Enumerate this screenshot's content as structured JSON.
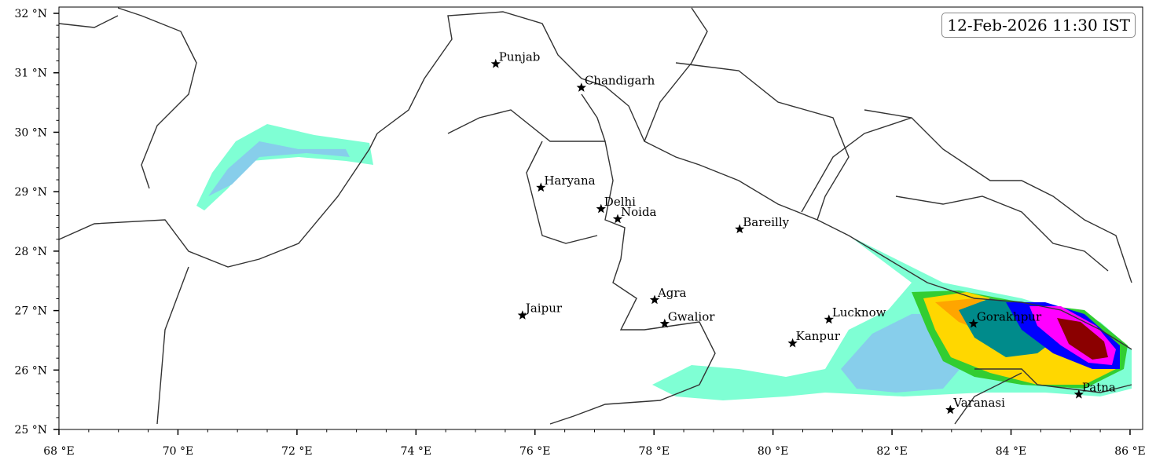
{
  "map": {
    "timestamp": "12-Feb-2026 11:30 IST",
    "extent": {
      "lon": [
        68,
        86.2
      ],
      "lat": [
        25,
        32.1
      ]
    },
    "x_ticks": [
      {
        "v": 68,
        "label": "68 °E"
      },
      {
        "v": 70,
        "label": "70 °E"
      },
      {
        "v": 72,
        "label": "72 °E"
      },
      {
        "v": 74,
        "label": "74 °E"
      },
      {
        "v": 76,
        "label": "76 °E"
      },
      {
        "v": 78,
        "label": "78 °E"
      },
      {
        "v": 80,
        "label": "80 °E"
      },
      {
        "v": 82,
        "label": "82 °E"
      },
      {
        "v": 84,
        "label": "84 °E"
      },
      {
        "v": 86,
        "label": "86 °E"
      }
    ],
    "y_ticks": [
      {
        "v": 25,
        "label": "25 °N"
      },
      {
        "v": 26,
        "label": "26 °N"
      },
      {
        "v": 27,
        "label": "27 °N"
      },
      {
        "v": 28,
        "label": "28 °N"
      },
      {
        "v": 29,
        "label": "29 °N"
      },
      {
        "v": 30,
        "label": "30 °N"
      },
      {
        "v": 31,
        "label": "31 °N"
      },
      {
        "v": 32,
        "label": "32 °N"
      }
    ],
    "cities": [
      {
        "name": "Punjab",
        "lon": 75.34,
        "lat": 31.15
      },
      {
        "name": "Chandigarh",
        "lon": 76.78,
        "lat": 30.75
      },
      {
        "name": "Haryana",
        "lon": 76.1,
        "lat": 29.07
      },
      {
        "name": "Delhi",
        "lon": 77.11,
        "lat": 28.71
      },
      {
        "name": "Noida",
        "lon": 77.39,
        "lat": 28.54
      },
      {
        "name": "Bareilly",
        "lon": 79.44,
        "lat": 28.37
      },
      {
        "name": "Agra",
        "lon": 78.01,
        "lat": 27.18
      },
      {
        "name": "Jaipur",
        "lon": 75.79,
        "lat": 26.92
      },
      {
        "name": "Gwalior",
        "lon": 78.18,
        "lat": 26.78
      },
      {
        "name": "Lucknow",
        "lon": 80.94,
        "lat": 26.85
      },
      {
        "name": "Kanpur",
        "lon": 80.33,
        "lat": 26.45
      },
      {
        "name": "Gorakhpur",
        "lon": 83.37,
        "lat": 26.78
      },
      {
        "name": "Varanasi",
        "lon": 82.98,
        "lat": 25.33
      },
      {
        "name": "Patna",
        "lon": 85.14,
        "lat": 25.59
      }
    ],
    "rain_colors": [
      "#7fffd4",
      "#87ceeb",
      "#32cd32",
      "#ffd700",
      "#ffa500",
      "#008b8b",
      "#0000ff",
      "#ff00ff",
      "#8b0000"
    ],
    "marker_icon": "star-icon"
  }
}
